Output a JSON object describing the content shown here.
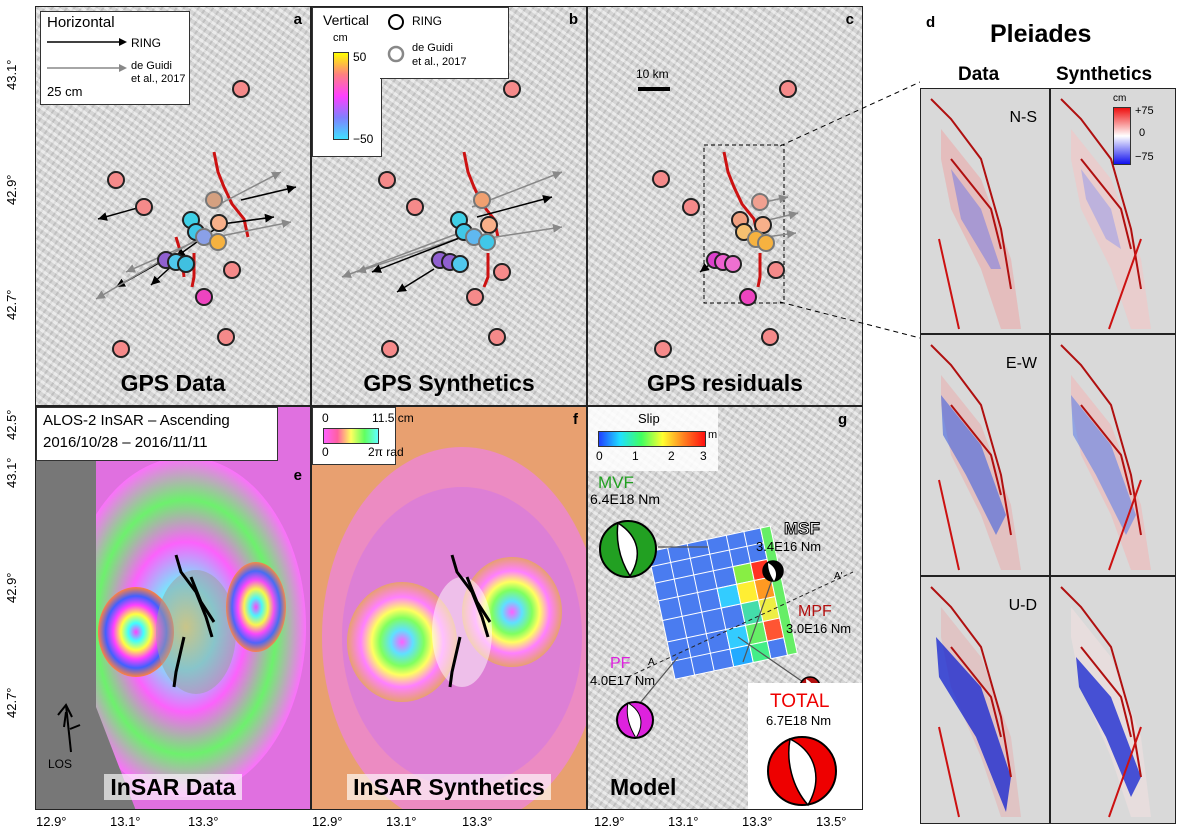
{
  "colors": {
    "fault": "#cc1111",
    "obs": "#000000",
    "gdg": "#777777",
    "mvf": "#22a022",
    "pf": "#dd22dd",
    "msf": "#000000",
    "mpf": "#b31010",
    "total": "#ee0000"
  },
  "panels": {
    "a": {
      "letter": "a",
      "title": "GPS Data"
    },
    "b": {
      "letter": "b",
      "title": "GPS Synthetics"
    },
    "c": {
      "letter": "c",
      "title": "GPS residuals"
    },
    "d": {
      "letter": "d",
      "title": "Pleiades",
      "col_data": "Data",
      "col_synth": "Synthetics",
      "rows": [
        "N-S",
        "E-W",
        "U-D"
      ]
    },
    "e": {
      "letter": "e",
      "title": "InSAR Data",
      "header1": "ALOS-2 InSAR – Ascending",
      "header2": "2016/10/28 – 2016/11/11",
      "los": "LOS"
    },
    "f": {
      "letter": "f",
      "title": "InSAR Synthetics"
    },
    "g": {
      "letter": "g",
      "title": "Model"
    }
  },
  "legend_horizontal": {
    "title": "Horizontal",
    "ring": "RING",
    "gdg1": "de Guidi",
    "gdg2": "et al., 2017",
    "scale": "25 cm"
  },
  "legend_vertical": {
    "title": "Vertical",
    "unit": "cm",
    "max": "50",
    "min": "−50",
    "ring": "RING",
    "gdg1": "de Guidi",
    "gdg2": "et al., 2017"
  },
  "scale_bar": "10 km",
  "phase_scale": {
    "max_cm": "11.5 cm",
    "zero": "0",
    "zero2": "0",
    "rad": "2π rad"
  },
  "slip_scale": {
    "title": "Slip",
    "unit": "m",
    "ticks": [
      "0",
      "1",
      "2",
      "3"
    ]
  },
  "pleiades_scale": {
    "unit": "cm",
    "max": "+75",
    "mid": "0",
    "min": "−75"
  },
  "mechanisms": [
    {
      "name": "MVF",
      "moment": "6.4E18 Nm"
    },
    {
      "name": "MSF",
      "moment": "3.4E16 Nm"
    },
    {
      "name": "MPF",
      "moment": "3.0E16 Nm"
    },
    {
      "name": "PF",
      "moment": "4.0E17 Nm"
    },
    {
      "name": "TOTAL",
      "moment": "6.7E18 Nm"
    }
  ],
  "profile": {
    "a": "A",
    "a_prime": "A'"
  },
  "y_ticks_top": [
    "43.1°",
    "42.9°",
    "42.7°",
    "42.5°"
  ],
  "y_ticks_bottom": [
    "43.1°",
    "42.9°",
    "42.7°"
  ],
  "x_ticks": [
    "12.9°",
    "13.1°",
    "13.3°",
    "12.9°",
    "13.1°",
    "13.3°",
    "12.9°",
    "13.1°",
    "13.3°",
    "13.5°"
  ]
}
